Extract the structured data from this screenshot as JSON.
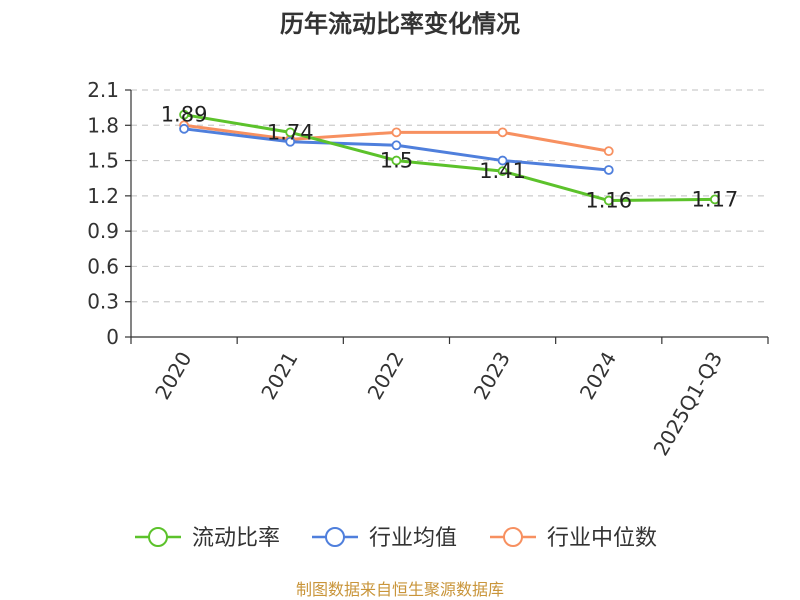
{
  "chart_data": {
    "type": "line",
    "title": "历年流动比率变化情况",
    "categories": [
      "2020",
      "2021",
      "2022",
      "2023",
      "2024",
      "2025Q1-Q3"
    ],
    "ylim": [
      0,
      2.1
    ],
    "yticks": [
      "0",
      "0.3",
      "0.6",
      "0.9",
      "1.2",
      "1.5",
      "1.8",
      "2.1"
    ],
    "grid": true,
    "xlabel": "",
    "ylabel": "",
    "legend_position": "bottom",
    "series": [
      {
        "name": "流动比率",
        "color": "#5cc22b",
        "values": [
          1.89,
          1.74,
          1.5,
          1.41,
          1.16,
          1.17
        ],
        "labels": [
          "1.89",
          "1.74",
          "1.5",
          "1.41",
          "1.16",
          "1.17"
        ]
      },
      {
        "name": "行业均值",
        "color": "#4f7fdc",
        "values": [
          1.77,
          1.66,
          1.63,
          1.5,
          1.42,
          null
        ]
      },
      {
        "name": "行业中位数",
        "color": "#f79060",
        "values": [
          1.8,
          1.68,
          1.74,
          1.74,
          1.58,
          null
        ]
      }
    ]
  },
  "footer": {
    "source": "制图数据来自恒生聚源数据库"
  }
}
